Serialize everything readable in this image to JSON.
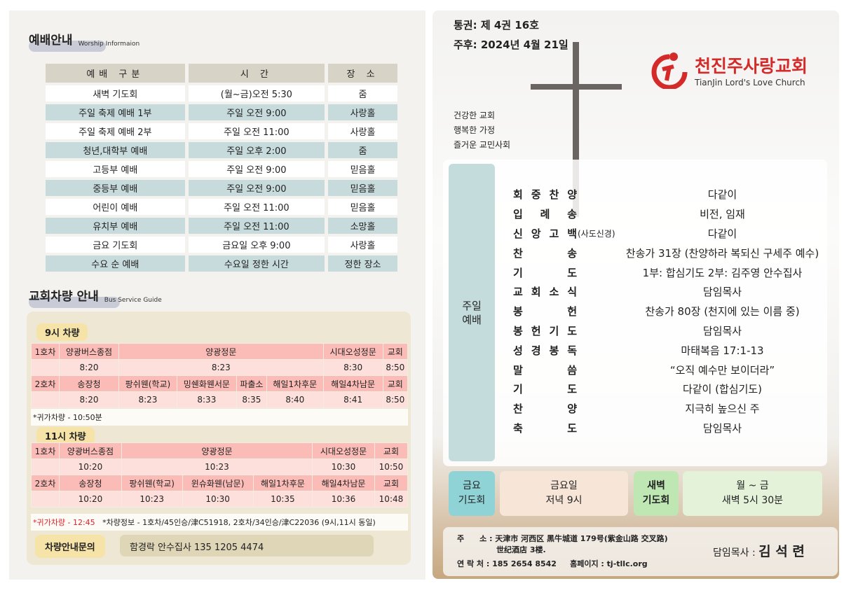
{
  "worship": {
    "title": "예배안내",
    "subtitle": "Worship Informaion",
    "headers": [
      "예배 구분",
      "시 간",
      "장 소"
    ],
    "rows": [
      [
        "새벽 기도회",
        "(월~금)오전 5:30",
        "줌"
      ],
      [
        "주일 축제 예배 1부",
        "주일 오전 9:00",
        "사랑홀"
      ],
      [
        "주일 축제 예배 2부",
        "주일 오전 11:00",
        "사랑홀"
      ],
      [
        "청년,대학부 예배",
        "주일 오후 2:00",
        "줌"
      ],
      [
        "고등부 예배",
        "주일 오전 9:00",
        "믿음홀"
      ],
      [
        "중등부 예배",
        "주일 오전 9:00",
        "믿음홀"
      ],
      [
        "어린이 예배",
        "주일 오전 11:00",
        "믿음홀"
      ],
      [
        "유치부 예배",
        "주일 오전 11:00",
        "소망홀"
      ],
      [
        "금요 기도회",
        "금요일 오후 9:00",
        "사랑홀"
      ],
      [
        "수요 순 예배",
        "수요일 정한 시간",
        "정한 장소"
      ]
    ]
  },
  "bus": {
    "title": "교회차량 안내",
    "subtitle": "Bus Service Guide",
    "t9": {
      "label": "9시 차량",
      "rows": [
        {
          "type": "st",
          "cells": [
            {
              "t": "1호차",
              "s": 1
            },
            {
              "t": "양광버스종점",
              "s": 1
            },
            {
              "t": "양광정문",
              "s": 4
            },
            {
              "t": "시대오성정문",
              "s": 1
            },
            {
              "t": "교회",
              "s": 1
            }
          ]
        },
        {
          "type": "tm",
          "cells": [
            {
              "t": "",
              "s": 1
            },
            {
              "t": "8:20",
              "s": 1
            },
            {
              "t": "8:23",
              "s": 4
            },
            {
              "t": "8:30",
              "s": 1
            },
            {
              "t": "8:50",
              "s": 1
            }
          ]
        },
        {
          "type": "st",
          "cells": [
            {
              "t": "2호차",
              "s": 1
            },
            {
              "t": "송장청",
              "s": 1
            },
            {
              "t": "팡쉬웬(학교)",
              "s": 1
            },
            {
              "t": "밍쉔화웬서문",
              "s": 1
            },
            {
              "t": "파출소",
              "s": 1
            },
            {
              "t": "해일1차후문",
              "s": 1
            },
            {
              "t": "해일4차남문",
              "s": 1
            },
            {
              "t": "교회",
              "s": 1
            }
          ]
        },
        {
          "type": "tm",
          "cells": [
            {
              "t": "",
              "s": 1
            },
            {
              "t": "8:20",
              "s": 1
            },
            {
              "t": "8:23",
              "s": 1
            },
            {
              "t": "8:33",
              "s": 1
            },
            {
              "t": "8:35",
              "s": 1
            },
            {
              "t": "8:40",
              "s": 1
            },
            {
              "t": "8:41",
              "s": 1
            },
            {
              "t": "8:50",
              "s": 1
            }
          ]
        }
      ],
      "note": "*귀가차량 - 10:50분"
    },
    "t11": {
      "label": "11시 차량",
      "rows": [
        {
          "type": "st",
          "cells": [
            {
              "t": "1호차",
              "s": 1
            },
            {
              "t": "양광버스종점",
              "s": 1
            },
            {
              "t": "양광정문",
              "s": 3
            },
            {
              "t": "시대오성정문",
              "s": 1
            },
            {
              "t": "교회",
              "s": 1
            }
          ]
        },
        {
          "type": "tm",
          "cells": [
            {
              "t": "",
              "s": 1
            },
            {
              "t": "10:20",
              "s": 1
            },
            {
              "t": "10:23",
              "s": 3
            },
            {
              "t": "10:30",
              "s": 1
            },
            {
              "t": "10:50",
              "s": 1
            }
          ]
        },
        {
          "type": "st",
          "cells": [
            {
              "t": "2호차",
              "s": 1
            },
            {
              "t": "송장청",
              "s": 1
            },
            {
              "t": "팡쉬웬(학교)",
              "s": 1
            },
            {
              "t": "윈슈화웬(남문)",
              "s": 1
            },
            {
              "t": "해일1차후문",
              "s": 1
            },
            {
              "t": "해일4차남문",
              "s": 1
            },
            {
              "t": "교회",
              "s": 1
            }
          ]
        },
        {
          "type": "tm",
          "cells": [
            {
              "t": "",
              "s": 1
            },
            {
              "t": "10:20",
              "s": 1
            },
            {
              "t": "10:23",
              "s": 1
            },
            {
              "t": "10:30",
              "s": 1
            },
            {
              "t": "10:35",
              "s": 1
            },
            {
              "t": "10:36",
              "s": 1
            },
            {
              "t": "10:48",
              "s": 1
            }
          ]
        }
      ],
      "note_red": "*귀가차량 - 12:45",
      "note": "*차량정보 - 1호차/45인승/津C51918, 2호차/34인승/津C22036 (9시,11시 동일)"
    },
    "contact_label": "차량안내문의",
    "contact": "함경락 안수집사 135 1205 4474"
  },
  "right": {
    "issue": "통권: 제 4권 16호",
    "date": "주후: 2024년 4월 21일",
    "logo": {
      "name": "천진주사랑교회",
      "en": "TianJin Lord's Love Church",
      "color": "#d42a2a"
    },
    "slogans": [
      "건강한 교회",
      "행복한 가정",
      "즐거운 교민사회"
    ],
    "service_label": "주일\n예배",
    "order": [
      [
        "회 중 찬 양",
        "",
        "다같이"
      ],
      [
        "입 례 송",
        "",
        "비전, 임재"
      ],
      [
        "신 앙 고 백",
        "(사도신경)",
        "다같이"
      ],
      [
        "찬 송",
        "",
        "찬송가 31장 (찬양하라 복되신 구세주 예수)"
      ],
      [
        "기 도",
        "",
        "1부: 합심기도 2부: 김주영 안수집사"
      ],
      [
        "교 회 소 식",
        "",
        "담임목사"
      ],
      [
        "봉 헌",
        "",
        "찬송가 80장 (천지에 있는 이름 중)"
      ],
      [
        "봉 헌 기 도",
        "",
        "담임목사"
      ],
      [
        "성 경 봉 독",
        "",
        "마태복음 17:1-13"
      ],
      [
        "말 씀",
        "",
        "“오직 예수만 보이더라”"
      ],
      [
        "기 도",
        "",
        "다같이 (합심기도)"
      ],
      [
        "찬 양",
        "",
        "지극히 높으신 주"
      ],
      [
        "축 도",
        "",
        "담임목사"
      ]
    ],
    "friday": {
      "label": "금요\n기도회",
      "when": "금요일\n저녁 9시"
    },
    "dawn": {
      "label": "새벽\n기도회",
      "when": "월 ~ 금\n새벽 5시 30분"
    },
    "footer": {
      "addr_label": "주　　소 :",
      "addr1": "天津市 河西区 黑牛城道 179号(紫金山路 交叉路)",
      "addr2": "世纪酒店 3楼.",
      "tel_label": "연 락 처 :",
      "tel": "185 2654 8542",
      "web_label": "홈페이지 :",
      "web": "tj-tllc.org",
      "pastor_label": "담임목사 :",
      "pastor": "김 석 련"
    }
  }
}
